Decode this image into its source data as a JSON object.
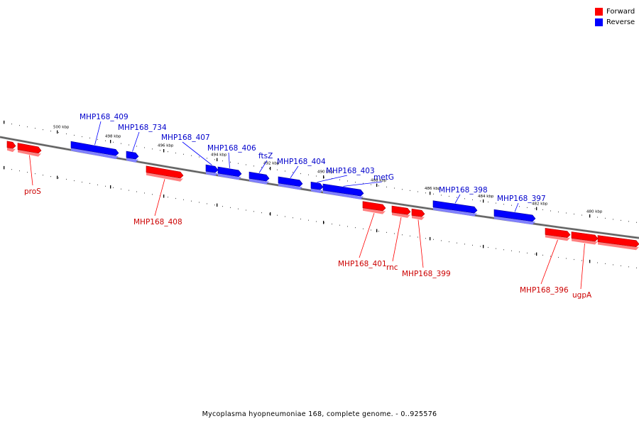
{
  "legend": {
    "forward": {
      "label": "Forward",
      "color": "#ff0000"
    },
    "reverse": {
      "label": "Reverse",
      "color": "#0000ff"
    }
  },
  "caption": "Mycoplasma hyopneumoniae 168, complete genome. - 0..925576",
  "scale": {
    "tick_labels": [
      "500 kbp",
      "498 kbp",
      "496 kbp",
      "494 kbp",
      "492 kbp",
      "490 kbp",
      "488 kbp",
      "486 kbp",
      "484 kbp",
      "482 kbp",
      "480 kbp"
    ]
  },
  "genes": [
    {
      "label": "",
      "strand": "forward"
    },
    {
      "label": "proS",
      "strand": "forward"
    },
    {
      "label": "MHP168_409",
      "strand": "reverse"
    },
    {
      "label": "MHP168_734",
      "strand": "reverse"
    },
    {
      "label": "MHP168_408",
      "strand": "forward"
    },
    {
      "label": "MHP168_407",
      "strand": "reverse"
    },
    {
      "label": "MHP168_406",
      "strand": "reverse"
    },
    {
      "label": "ftsZ",
      "strand": "reverse"
    },
    {
      "label": "MHP168_404",
      "strand": "reverse"
    },
    {
      "label": "MHP168_403",
      "strand": "reverse"
    },
    {
      "label": "metG",
      "strand": "reverse"
    },
    {
      "label": "MHP168_401",
      "strand": "forward"
    },
    {
      "label": "rnc",
      "strand": "forward"
    },
    {
      "label": "MHP168_399",
      "strand": "forward"
    },
    {
      "label": "MHP168_398",
      "strand": "reverse"
    },
    {
      "label": "MHP168_397",
      "strand": "reverse"
    },
    {
      "label": "MHP168_396",
      "strand": "forward"
    },
    {
      "label": "ugpA",
      "strand": "forward"
    },
    {
      "label": "",
      "strand": "forward"
    }
  ]
}
